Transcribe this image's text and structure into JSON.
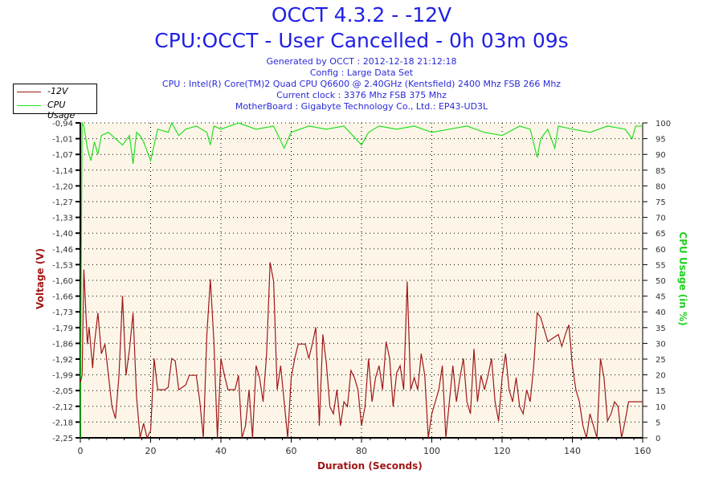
{
  "header": {
    "title": "OCCT 4.3.2 - -12V",
    "subtitle": "CPU:OCCT - User Cancelled - 0h 03m 09s",
    "info": [
      "Generated by OCCT : 2012-12-18 21:12:18",
      "Config : Large Data Set",
      "CPU : Intel(R) Core(TM)2 Quad CPU Q6600 @ 2.40GHz (Kentsfield) 2400 Mhz FSB 266 Mhz",
      "Current clock : 3376 Mhz FSB 375 Mhz",
      "MotherBoard : Gigabyte Technology Co., Ltd.: EP43-UD3L"
    ]
  },
  "chart_data": {
    "type": "line",
    "xlabel": "Duration (Seconds)",
    "ylabel": "Voltage (V)",
    "y2label": "CPU Usage (in %)",
    "xlim": [
      0,
      160
    ],
    "ylim": [
      -2.25,
      -0.94
    ],
    "y2lim": [
      0,
      100
    ],
    "xticks": [
      "0",
      "20",
      "40",
      "60",
      "80",
      "100",
      "120",
      "140",
      "160"
    ],
    "yticks": [
      "-0,94",
      "-1,01",
      "-1,07",
      "-1,14",
      "-1,20",
      "-1,27",
      "-1,33",
      "-1,40",
      "-1,46",
      "-1,53",
      "-1,60",
      "-1,66",
      "-1,73",
      "-1,79",
      "-1,86",
      "-1,92",
      "-1,99",
      "-2,05",
      "-2,12",
      "-2,18",
      "-2,25"
    ],
    "y2ticks": [
      "0",
      "5",
      "10",
      "15",
      "20",
      "25",
      "30",
      "35",
      "40",
      "45",
      "50",
      "55",
      "60",
      "65",
      "70",
      "75",
      "80",
      "85",
      "90",
      "95",
      "100"
    ],
    "legend": [
      "-12V",
      "CPU Usage"
    ],
    "legend_position": "top-left",
    "grid": true,
    "colors": {
      "voltage": "#a01818",
      "cpu": "#22e022",
      "bg": "#fdf6e8"
    },
    "series": [
      {
        "name": "-12V",
        "x": [
          0,
          0.5,
          1,
          2,
          2.5,
          3.5,
          4,
          5,
          6,
          7,
          8,
          9,
          10,
          11,
          12,
          13,
          14,
          15,
          16,
          17,
          18,
          19,
          20,
          21,
          22,
          24,
          25,
          26,
          27,
          28,
          30,
          31,
          33,
          34,
          35,
          36,
          37,
          38,
          39,
          40,
          41,
          42,
          44,
          45,
          46,
          47,
          48,
          49,
          50,
          51,
          52,
          53,
          54,
          55,
          56,
          57,
          58,
          59,
          60,
          61,
          62,
          64,
          65,
          66,
          67,
          68,
          69,
          70,
          71,
          72,
          73,
          74,
          75,
          76,
          77,
          78,
          79,
          80,
          81,
          82,
          83,
          84,
          85,
          86,
          87,
          88,
          89,
          90,
          91,
          92,
          93,
          94,
          95,
          96,
          97,
          98,
          99,
          100,
          101,
          102,
          103,
          104,
          105,
          106,
          107,
          108,
          109,
          110,
          111,
          112,
          113,
          114,
          115,
          116,
          117,
          118,
          119,
          120,
          121,
          122,
          123,
          124,
          125,
          126,
          127,
          128,
          129,
          130,
          131,
          132,
          133,
          135,
          136,
          137,
          138,
          139,
          140,
          141,
          142,
          143,
          144,
          145,
          146,
          147,
          148,
          149,
          150,
          151,
          152,
          153,
          154,
          155,
          156,
          157,
          160
        ],
        "values": [
          -2.02,
          -1.99,
          -1.55,
          -1.86,
          -1.79,
          -1.96,
          -1.86,
          -1.73,
          -1.9,
          -1.86,
          -1.99,
          -2.12,
          -2.17,
          -1.99,
          -1.66,
          -1.99,
          -1.88,
          -1.73,
          -2.08,
          -2.25,
          -2.19,
          -2.25,
          -2.22,
          -1.92,
          -2.05,
          -2.05,
          -2.04,
          -1.92,
          -1.93,
          -2.05,
          -2.03,
          -1.99,
          -1.99,
          -2.1,
          -2.25,
          -1.82,
          -1.59,
          -1.85,
          -2.25,
          -1.92,
          -1.99,
          -2.05,
          -2.05,
          -1.99,
          -2.25,
          -2.2,
          -2.05,
          -2.25,
          -1.95,
          -2.0,
          -2.1,
          -1.9,
          -1.52,
          -1.6,
          -2.05,
          -1.95,
          -2.1,
          -2.25,
          -2.0,
          -1.92,
          -1.86,
          -1.86,
          -1.92,
          -1.86,
          -1.79,
          -2.2,
          -1.82,
          -1.94,
          -2.12,
          -2.15,
          -2.05,
          -2.2,
          -2.1,
          -2.12,
          -1.97,
          -2.0,
          -2.05,
          -2.2,
          -2.12,
          -1.92,
          -2.1,
          -2.0,
          -1.95,
          -2.05,
          -1.85,
          -1.92,
          -2.12,
          -1.98,
          -1.95,
          -2.05,
          -1.6,
          -2.05,
          -2.0,
          -2.05,
          -1.9,
          -1.99,
          -2.25,
          -2.15,
          -2.1,
          -2.05,
          -1.95,
          -2.25,
          -2.1,
          -1.95,
          -2.1,
          -2.0,
          -1.92,
          -2.1,
          -2.15,
          -1.88,
          -2.1,
          -1.99,
          -2.05,
          -1.99,
          -1.92,
          -2.1,
          -2.18,
          -2.0,
          -1.9,
          -2.05,
          -2.1,
          -2.0,
          -2.12,
          -2.15,
          -2.05,
          -2.1,
          -1.95,
          -1.73,
          -1.75,
          -1.8,
          -1.85,
          -1.83,
          -1.82,
          -1.87,
          -1.82,
          -1.78,
          -1.95,
          -2.05,
          -2.1,
          -2.2,
          -2.25,
          -2.15,
          -2.2,
          -2.25,
          -1.92,
          -2.0,
          -2.18,
          -2.15,
          -2.1,
          -2.12,
          -2.25,
          -2.18,
          -2.1,
          -2.1,
          -2.1
        ]
      },
      {
        "name": "CPU Usage",
        "x": [
          0,
          0.5,
          1,
          2,
          3,
          4,
          5,
          6,
          8,
          10,
          12,
          14,
          15,
          16,
          17,
          18,
          19,
          20,
          22,
          25,
          26,
          28,
          30,
          33,
          36,
          37,
          38,
          40,
          45,
          50,
          55,
          58,
          60,
          65,
          70,
          75,
          80,
          82,
          85,
          90,
          95,
          100,
          105,
          110,
          115,
          120,
          125,
          128,
          130,
          131,
          133,
          135,
          136,
          140,
          145,
          150,
          155,
          157,
          158,
          160
        ],
        "values": [
          0,
          100,
          99,
          92,
          88,
          94,
          90,
          96,
          97,
          95,
          93,
          96,
          87,
          97,
          96,
          94,
          91,
          88,
          98,
          97,
          100,
          96,
          98,
          99,
          97,
          93,
          99,
          98,
          100,
          98,
          99,
          92,
          97,
          99,
          98,
          99,
          93,
          97,
          99,
          98,
          99,
          97,
          98,
          99,
          97,
          96,
          99,
          98,
          89,
          95,
          98,
          92,
          99,
          98,
          97,
          99,
          98,
          95,
          99,
          99
        ]
      }
    ]
  }
}
